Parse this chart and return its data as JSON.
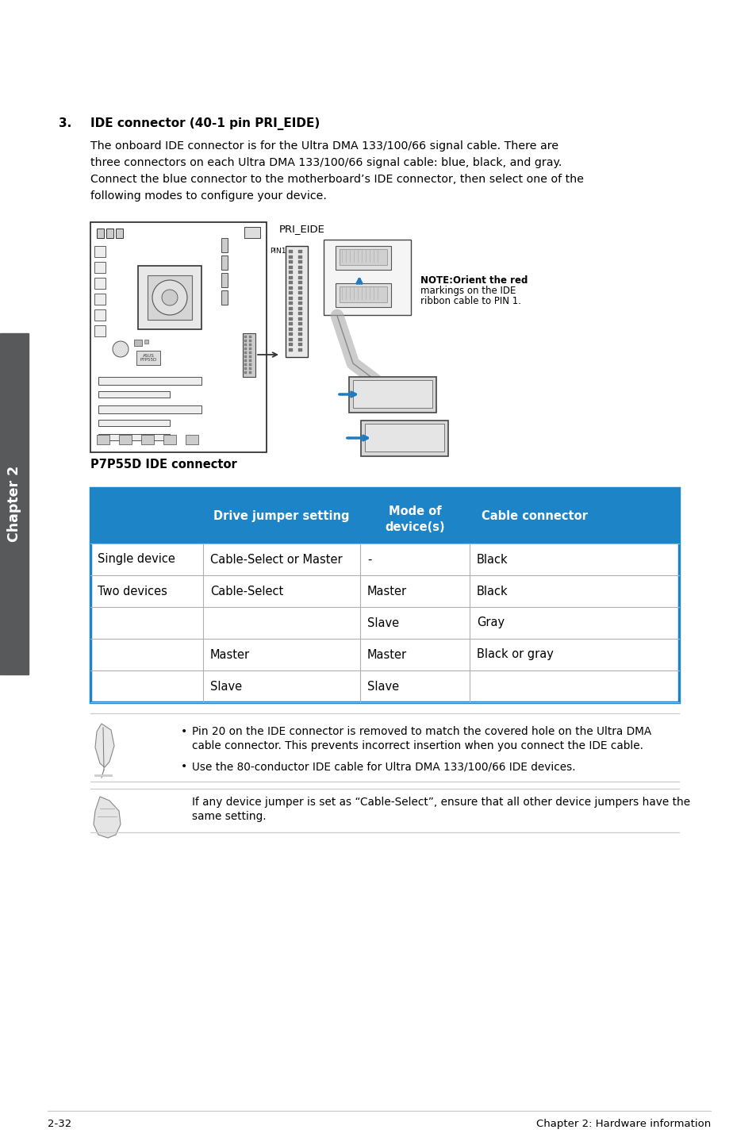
{
  "page_bg": "#ffffff",
  "section_number": "3.",
  "section_title": "IDE connector (40-1 pin PRI_EIDE)",
  "body_lines": [
    "The onboard IDE connector is for the Ultra DMA 133/100/66 signal cable. There are",
    "three connectors on each Ultra DMA 133/100/66 signal cable: blue, black, and gray.",
    "Connect the blue connector to the motherboard’s IDE connector, then select one of the",
    "following modes to configure your device."
  ],
  "diagram_caption": "P7P55D IDE connector",
  "pri_eide_label": "PRI_EIDE",
  "note_text_line1": "NOTE:Orient the red",
  "note_text_line2": "markings on the IDE",
  "note_text_line3": "ribbon cable to PIN 1.",
  "table_header_bg": "#1e84c8",
  "table_header_text_color": "#ffffff",
  "table_border_color": "#1e84c8",
  "table_cell_border": "#b0b0b0",
  "table_headers": [
    "",
    "Drive jumper setting",
    "Mode of\ndevice(s)",
    "Cable connector"
  ],
  "table_rows": [
    [
      "Single device",
      "Cable-Select or Master",
      "-",
      "Black"
    ],
    [
      "Two devices",
      "Cable-Select",
      "Master",
      "Black"
    ],
    [
      "",
      "",
      "Slave",
      "Gray"
    ],
    [
      "",
      "Master",
      "Master",
      "Black or gray"
    ],
    [
      "",
      "Slave",
      "Slave",
      ""
    ]
  ],
  "note1_bullet1_line1": "Pin 20 on the IDE connector is removed to match the covered hole on the Ultra DMA",
  "note1_bullet1_line2": "cable connector. This prevents incorrect insertion when you connect the IDE cable.",
  "note1_bullet2": "Use the 80-conductor IDE cable for Ultra DMA 133/100/66 IDE devices.",
  "note2_text_line1": "If any device jumper is set as “Cable-Select”, ensure that all other device jumpers have the",
  "note2_text_line2": "same setting.",
  "footer_left": "2-32",
  "footer_right": "Chapter 2: Hardware information",
  "chapter_sidebar": "Chapter 2",
  "sidebar_bg": "#58595b",
  "sidebar_text_color": "#ffffff"
}
